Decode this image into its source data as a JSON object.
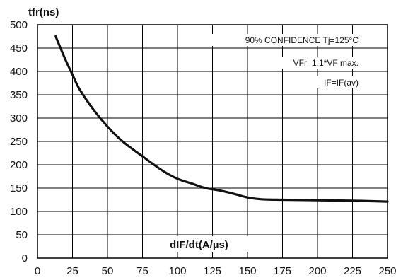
{
  "chart_data": {
    "type": "line",
    "ylabel": "tfr(ns)",
    "xlabel": "dIF/dt(A/µs)",
    "xlim": [
      0,
      250
    ],
    "ylim": [
      0,
      500
    ],
    "x_ticks": [
      "0",
      "25",
      "50",
      "75",
      "100",
      "125",
      "150",
      "175",
      "200",
      "225",
      "250"
    ],
    "y_ticks": [
      "0",
      "50",
      "100",
      "150",
      "200",
      "250",
      "300",
      "350",
      "400",
      "450",
      "500"
    ],
    "grid": true,
    "annotations": [
      "90% CONFIDENCE Tj=125°C",
      "VFr=1.1*VF max.",
      "IF=IF(av)"
    ],
    "series": [
      {
        "x": [
          13,
          20,
          25,
          30,
          40,
          50,
          60,
          75,
          90,
          100,
          110,
          120,
          130,
          140,
          150,
          160,
          175,
          200,
          225,
          250
        ],
        "y": [
          475,
          425,
          393,
          362,
          318,
          282,
          252,
          218,
          186,
          170,
          160,
          150,
          145,
          138,
          130,
          126,
          125,
          124,
          123,
          121
        ]
      }
    ]
  }
}
